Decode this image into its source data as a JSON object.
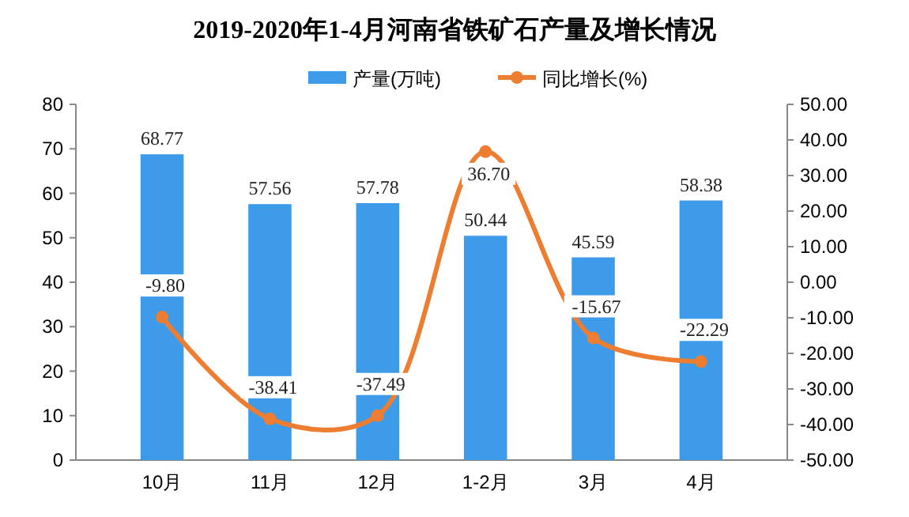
{
  "chart_data": {
    "type": "bar",
    "title": "2019-2020年1-4月河南省铁矿石产量及增长情况",
    "categories": [
      "10月",
      "11月",
      "12月",
      "1-2月",
      "3月",
      "4月"
    ],
    "series": [
      {
        "name": "产量(万吨)",
        "color": "#3d9be9",
        "values": [
          68.77,
          57.56,
          57.78,
          50.44,
          45.59,
          58.38
        ],
        "value_labels": [
          "68.77",
          "57.56",
          "57.78",
          "50.44",
          "45.59",
          "58.38"
        ]
      },
      {
        "name": "同比增长(%)",
        "type": "line",
        "axis": "y2",
        "color": "#ed7d31",
        "values": [
          -9.8,
          -38.41,
          -37.49,
          36.7,
          -15.67,
          -22.29
        ],
        "value_labels": [
          "-9.80",
          "-38.41",
          "-37.49",
          "36.70",
          "-15.67",
          "-22.29"
        ]
      }
    ],
    "ylim": [
      0,
      80
    ],
    "yticks": [
      0,
      10,
      20,
      30,
      40,
      50,
      60,
      70,
      80
    ],
    "y2lim": [
      -50,
      50
    ],
    "y2ticks": [
      {
        "value": -50,
        "label": "-50.00"
      },
      {
        "value": -40,
        "label": "-40.00"
      },
      {
        "value": -30,
        "label": "-30.00"
      },
      {
        "value": -20,
        "label": "-20.00"
      },
      {
        "value": -10,
        "label": "-10.00"
      },
      {
        "value": 0,
        "label": "0.00"
      },
      {
        "value": 10,
        "label": "10.00"
      },
      {
        "value": 20,
        "label": "20.00"
      },
      {
        "value": 30,
        "label": "30.00"
      },
      {
        "value": 40,
        "label": "40.00"
      },
      {
        "value": 50,
        "label": "50.00"
      }
    ],
    "legend": "top",
    "marker": "circle",
    "line_style": "solid",
    "grid": false
  }
}
